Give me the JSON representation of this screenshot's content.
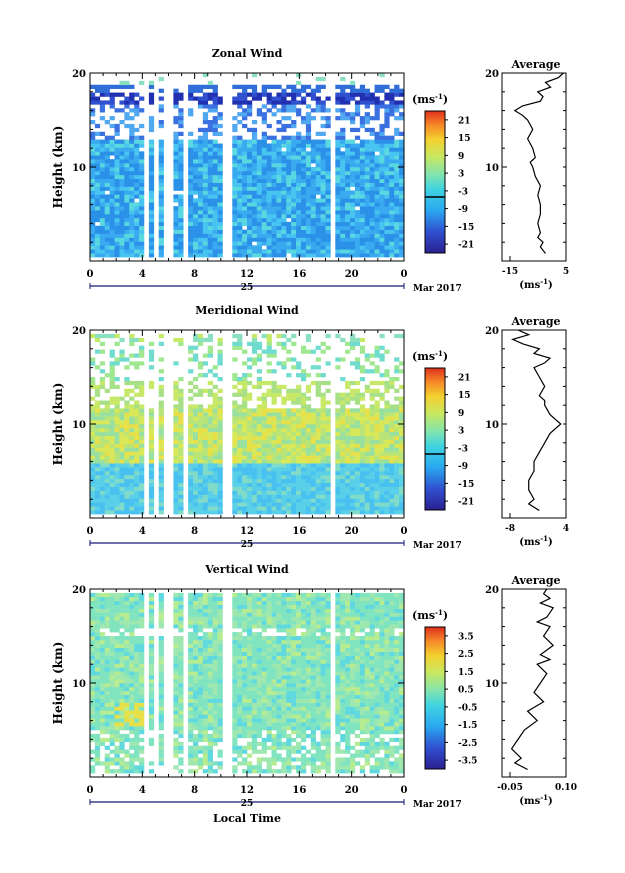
{
  "chart_data": [
    {
      "type": "heatmap",
      "title": "Zonal Wind",
      "ylabel": "Height (km)",
      "ylim": [
        0,
        20
      ],
      "yticks": [
        "10",
        "20"
      ],
      "xlim": [
        0,
        24
      ],
      "xticks": [
        "0",
        "4",
        "8",
        "12",
        "16",
        "20",
        "0"
      ],
      "date_label": "25",
      "month_label": "Mar 2017",
      "colorbar": {
        "unit": "(ms",
        "unit_exp": "-1",
        "unit_close": ")",
        "labels": [
          "21",
          "15",
          "9",
          "3",
          "-3",
          "-9",
          "-15",
          "-21"
        ],
        "range": [
          -24,
          24
        ],
        "zero_line": 0
      },
      "average": {
        "title": "Average",
        "xlim": [
          -20,
          5
        ],
        "xticks": [
          "-15",
          "5"
        ],
        "xlabel": "(ms",
        "xlabel_exp": "-1",
        "xlabel_close": ")",
        "yticks": [
          "10",
          "20"
        ],
        "profile": [
          [
            0.8,
            -3
          ],
          [
            1.5,
            -5
          ],
          [
            2,
            -4
          ],
          [
            2.5,
            -6
          ],
          [
            3,
            -5
          ],
          [
            4,
            -6
          ],
          [
            5,
            -5
          ],
          [
            6,
            -5
          ],
          [
            7,
            -6
          ],
          [
            8,
            -5
          ],
          [
            9,
            -7
          ],
          [
            10,
            -8
          ],
          [
            10.5,
            -9
          ],
          [
            11,
            -7
          ],
          [
            12,
            -8
          ],
          [
            13,
            -10
          ],
          [
            13.5,
            -9
          ],
          [
            14,
            -8
          ],
          [
            15,
            -10
          ],
          [
            15.5,
            -12
          ],
          [
            16,
            -15
          ],
          [
            16.5,
            -12
          ],
          [
            17,
            -5
          ],
          [
            17.5,
            -4
          ],
          [
            18,
            -6
          ],
          [
            18.5,
            -1
          ],
          [
            19,
            -3
          ],
          [
            19.5,
            2
          ],
          [
            20,
            4
          ]
        ]
      }
    },
    {
      "type": "heatmap",
      "title": "Meridional Wind",
      "ylabel": "Height (km)",
      "ylim": [
        0,
        20
      ],
      "yticks": [
        "10",
        "20"
      ],
      "xlim": [
        0,
        24
      ],
      "xticks": [
        "0",
        "4",
        "8",
        "12",
        "16",
        "20",
        "0"
      ],
      "date_label": "25",
      "month_label": "Mar 2017",
      "colorbar": {
        "unit": "(ms",
        "unit_exp": "-1",
        "unit_close": ")",
        "labels": [
          "21",
          "15",
          "9",
          "3",
          "-3",
          "-9",
          "-15",
          "-21"
        ],
        "range": [
          -24,
          24
        ],
        "zero_line": 0
      },
      "average": {
        "title": "Average",
        "xlim": [
          -8,
          4
        ],
        "xticks": [
          "-8",
          "4"
        ],
        "xlabel": "(ms",
        "xlabel_exp": "-1",
        "xlabel_close": ")",
        "yticks": [
          "10",
          "20"
        ],
        "profile": [
          [
            0.8,
            -1
          ],
          [
            1.5,
            -3
          ],
          [
            2,
            -2
          ],
          [
            3,
            -3
          ],
          [
            4,
            -3
          ],
          [
            5,
            -2
          ],
          [
            6,
            -2
          ],
          [
            7,
            -1
          ],
          [
            8,
            0
          ],
          [
            9,
            1
          ],
          [
            10,
            3
          ],
          [
            11,
            1
          ],
          [
            12,
            0
          ],
          [
            12.5,
            0
          ],
          [
            13,
            -1
          ],
          [
            14,
            0
          ],
          [
            15,
            -1
          ],
          [
            16,
            -2
          ],
          [
            16.5,
            0
          ],
          [
            17,
            1
          ],
          [
            17.5,
            -2
          ],
          [
            18,
            -1
          ],
          [
            18.5,
            -4
          ],
          [
            19,
            -6
          ],
          [
            19.5,
            -3
          ],
          [
            20,
            -5
          ]
        ]
      }
    },
    {
      "type": "heatmap",
      "title": "Vertical Wind",
      "xlabel": "Local Time",
      "ylabel": "Height (km)",
      "ylim": [
        0,
        20
      ],
      "yticks": [
        "10",
        "20"
      ],
      "xlim": [
        0,
        24
      ],
      "xticks": [
        "0",
        "4",
        "8",
        "12",
        "16",
        "20",
        "0"
      ],
      "date_label": "25",
      "month_label": "Mar 2017",
      "colorbar": {
        "unit": "(ms",
        "unit_exp": "-1",
        "unit_close": ")",
        "labels": [
          "3.5",
          "2.5",
          "1.5",
          "0.5",
          "-0.5",
          "-1.5",
          "-2.5",
          "-3.5"
        ],
        "range": [
          -4,
          4
        ]
      },
      "average": {
        "title": "Average",
        "xlim": [
          -0.1,
          0.1
        ],
        "xticks": [
          "-0.05",
          "0.10"
        ],
        "xlabel": "(ms",
        "xlabel_exp": "-1",
        "xlabel_close": ")",
        "yticks": [
          "10",
          "20"
        ],
        "profile": [
          [
            0.8,
            -0.02
          ],
          [
            1.5,
            -0.06
          ],
          [
            2,
            -0.04
          ],
          [
            3,
            -0.07
          ],
          [
            4,
            -0.05
          ],
          [
            5,
            -0.03
          ],
          [
            6,
            0.01
          ],
          [
            7,
            -0.02
          ],
          [
            8,
            0.03
          ],
          [
            9,
            0.0
          ],
          [
            10,
            0.02
          ],
          [
            11,
            0.04
          ],
          [
            12,
            0.01
          ],
          [
            12.5,
            0.05
          ],
          [
            13,
            0.02
          ],
          [
            14,
            0.06
          ],
          [
            15,
            0.03
          ],
          [
            16,
            0.05
          ],
          [
            16.5,
            0.01
          ],
          [
            17,
            0.04
          ],
          [
            18,
            0.06
          ],
          [
            18.5,
            0.02
          ],
          [
            19,
            0.05
          ],
          [
            19.5,
            0.03
          ],
          [
            20,
            0.04
          ]
        ]
      }
    }
  ],
  "colors": {
    "scale": [
      "#3b2fa8",
      "#2f6ed8",
      "#2aa0e8",
      "#45c8e8",
      "#8be0c0",
      "#c6ea68",
      "#f0d838",
      "#f59a2a",
      "#e8402a"
    ]
  }
}
